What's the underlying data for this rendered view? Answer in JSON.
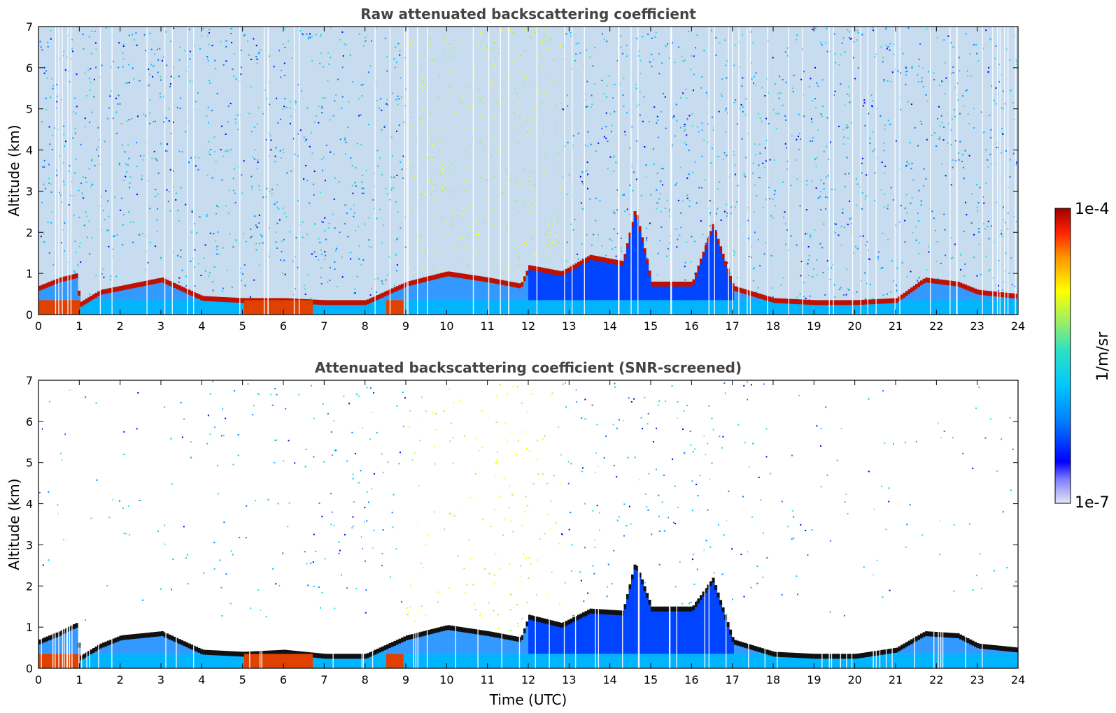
{
  "chart_data": [
    {
      "type": "heatmap",
      "title": "Raw attenuated backscattering coefficient",
      "xlabel": "",
      "ylabel": "Altitude (km)",
      "xlim": [
        0,
        24
      ],
      "ylim": [
        0,
        7
      ],
      "x_ticks": [
        0,
        1,
        2,
        3,
        4,
        5,
        6,
        7,
        8,
        9,
        10,
        11,
        12,
        13,
        14,
        15,
        16,
        17,
        18,
        19,
        20,
        21,
        22,
        23,
        24
      ],
      "y_ticks": [
        0,
        1,
        2,
        3,
        4,
        5,
        6,
        7
      ],
      "layer_top_km": [
        [
          0,
          0.7
        ],
        [
          0.5,
          0.9
        ],
        [
          0.9,
          1.0
        ],
        [
          1.0,
          0.3
        ],
        [
          1.5,
          0.6
        ],
        [
          2,
          0.7
        ],
        [
          3,
          0.9
        ],
        [
          4,
          0.45
        ],
        [
          5,
          0.4
        ],
        [
          6,
          0.4
        ],
        [
          7,
          0.35
        ],
        [
          8,
          0.35
        ],
        [
          9,
          0.8
        ],
        [
          10,
          1.05
        ],
        [
          11,
          0.9
        ],
        [
          11.8,
          0.75
        ],
        [
          12,
          1.2
        ],
        [
          12.8,
          1.05
        ],
        [
          13.5,
          1.45
        ],
        [
          14.3,
          1.3
        ],
        [
          14.6,
          2.6
        ],
        [
          15,
          0.8
        ],
        [
          16,
          0.8
        ],
        [
          16.5,
          2.2
        ],
        [
          17,
          0.7
        ],
        [
          18,
          0.4
        ],
        [
          19,
          0.35
        ],
        [
          20,
          0.35
        ],
        [
          21,
          0.4
        ],
        [
          21.7,
          0.9
        ],
        [
          22.5,
          0.8
        ],
        [
          23,
          0.6
        ],
        [
          24,
          0.5
        ]
      ]
    },
    {
      "type": "heatmap",
      "title": "Attenuated backscattering coefficient (SNR-screened)",
      "xlabel": "Time (UTC)",
      "ylabel": "Altitude (km)",
      "xlim": [
        0,
        24
      ],
      "ylim": [
        0,
        7
      ],
      "x_ticks": [
        0,
        1,
        2,
        3,
        4,
        5,
        6,
        7,
        8,
        9,
        10,
        11,
        12,
        13,
        14,
        15,
        16,
        17,
        18,
        19,
        20,
        21,
        22,
        23,
        24
      ],
      "y_ticks": [
        0,
        1,
        2,
        3,
        4,
        5,
        6,
        7
      ],
      "layer_top_km": [
        [
          0,
          0.7
        ],
        [
          0.5,
          0.9
        ],
        [
          0.9,
          1.1
        ],
        [
          1.0,
          0.3
        ],
        [
          1.5,
          0.6
        ],
        [
          2,
          0.8
        ],
        [
          3,
          0.9
        ],
        [
          4,
          0.45
        ],
        [
          5,
          0.4
        ],
        [
          6,
          0.45
        ],
        [
          7,
          0.35
        ],
        [
          8,
          0.35
        ],
        [
          9,
          0.8
        ],
        [
          10,
          1.05
        ],
        [
          11,
          0.9
        ],
        [
          11.8,
          0.75
        ],
        [
          12,
          1.3
        ],
        [
          12.8,
          1.1
        ],
        [
          13.5,
          1.45
        ],
        [
          14.3,
          1.4
        ],
        [
          14.6,
          2.6
        ],
        [
          15,
          1.5
        ],
        [
          16,
          1.5
        ],
        [
          16.5,
          2.2
        ],
        [
          17,
          0.7
        ],
        [
          18,
          0.4
        ],
        [
          19,
          0.35
        ],
        [
          20,
          0.35
        ],
        [
          21,
          0.5
        ],
        [
          21.7,
          0.9
        ],
        [
          22.5,
          0.85
        ],
        [
          23,
          0.6
        ],
        [
          24,
          0.5
        ]
      ]
    }
  ],
  "colorbar": {
    "label": "1/m/sr",
    "min_label": "1e-7",
    "max_label": "1e-4",
    "min": 1e-07,
    "max": 0.0001,
    "scale": "log",
    "colors": [
      "#e6e6f5",
      "#8080ff",
      "#0000ff",
      "#0080ff",
      "#00c8ff",
      "#30e0c0",
      "#a0f060",
      "#ffff00",
      "#ff9900",
      "#ff2000",
      "#a00000"
    ]
  }
}
